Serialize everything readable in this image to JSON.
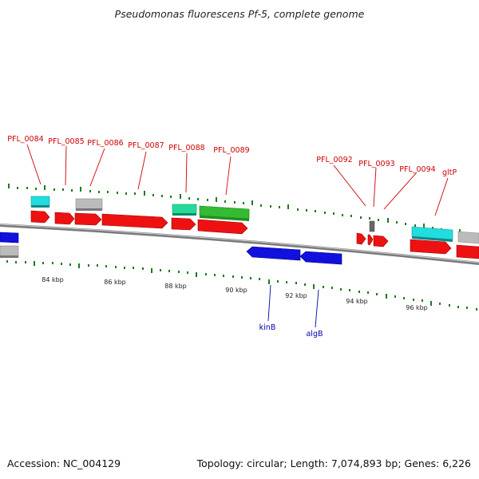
{
  "title": "Pseudomonas fluorescens Pf-5, complete genome",
  "footer": {
    "accession": "Accession: NC_004129",
    "summary": "Topology: circular; Length: 7,074,893 bp; Genes: 6,226"
  },
  "colors": {
    "backbone": "#7a7a7a",
    "gc_tick": "#1e7a1e",
    "forward_gene": "#ee1111",
    "reverse_gene": "#1111dd",
    "rna": "#22dddd",
    "pseudo": "#bbbbbb",
    "misc_feature": "#22cc88",
    "repeat": "#33bb33",
    "forward_label": "#cc0000",
    "reverse_label": "#0000aa"
  },
  "scale_labels": [
    "84 kbp",
    "86 kbp",
    "88 kbp",
    "90 kbp",
    "92 kbp",
    "94 kbp",
    "96 kbp"
  ],
  "forward_gene_labels": [
    "PFL_0084",
    "PFL_0085",
    "PFL_0086",
    "PFL_0087",
    "PFL_0088",
    "PFL_0089",
    "PFL_0092",
    "PFL_0093",
    "PFL_0094",
    "gltP"
  ],
  "reverse_gene_labels": [
    "kinB",
    "algB"
  ]
}
